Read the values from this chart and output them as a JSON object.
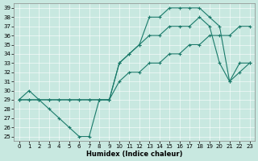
{
  "xlabel": "Humidex (Indice chaleur)",
  "bg_color": "#c8e8e0",
  "line_color": "#1a7a6a",
  "xlim": [
    -0.5,
    23.5
  ],
  "ylim": [
    24.5,
    39.5
  ],
  "xticks": [
    0,
    1,
    2,
    3,
    4,
    5,
    6,
    7,
    8,
    9,
    10,
    11,
    12,
    13,
    14,
    15,
    16,
    17,
    18,
    19,
    20,
    21,
    22,
    23
  ],
  "yticks": [
    25,
    26,
    27,
    28,
    29,
    30,
    31,
    32,
    33,
    34,
    35,
    36,
    37,
    38,
    39
  ],
  "line1_x": [
    0,
    1,
    2,
    3,
    4,
    5,
    6,
    7,
    8,
    9,
    10,
    11,
    12,
    13,
    14,
    15,
    16,
    17,
    18,
    19,
    20,
    21,
    22,
    23
  ],
  "line1_y": [
    29,
    29,
    29,
    28,
    27,
    26,
    25,
    25,
    29,
    29,
    33,
    34,
    35,
    36,
    36,
    37,
    37,
    37,
    38,
    37,
    33,
    31,
    33,
    33
  ],
  "line2_x": [
    0,
    1,
    2,
    3,
    4,
    5,
    6,
    7,
    8,
    9,
    10,
    11,
    12,
    13,
    14,
    15,
    16,
    17,
    18,
    19,
    20,
    21,
    22,
    23
  ],
  "line2_y": [
    29,
    29,
    29,
    29,
    29,
    29,
    29,
    29,
    29,
    29,
    31,
    32,
    32,
    33,
    33,
    34,
    34,
    35,
    35,
    36,
    36,
    36,
    37,
    37
  ],
  "line3_x": [
    0,
    1,
    2,
    3,
    4,
    5,
    6,
    7,
    8,
    9,
    10,
    11,
    12,
    13,
    14,
    15,
    16,
    17,
    18,
    19,
    20,
    21,
    22,
    23
  ],
  "line3_y": [
    29,
    30,
    29,
    29,
    29,
    29,
    29,
    29,
    29,
    29,
    33,
    34,
    35,
    38,
    38,
    39,
    39,
    39,
    39,
    38,
    37,
    31,
    32,
    33
  ],
  "tick_fontsize": 5,
  "xlabel_fontsize": 6,
  "marker_size": 3,
  "linewidth": 0.8,
  "grid_color": "#ffffff",
  "grid_lw": 0.4
}
